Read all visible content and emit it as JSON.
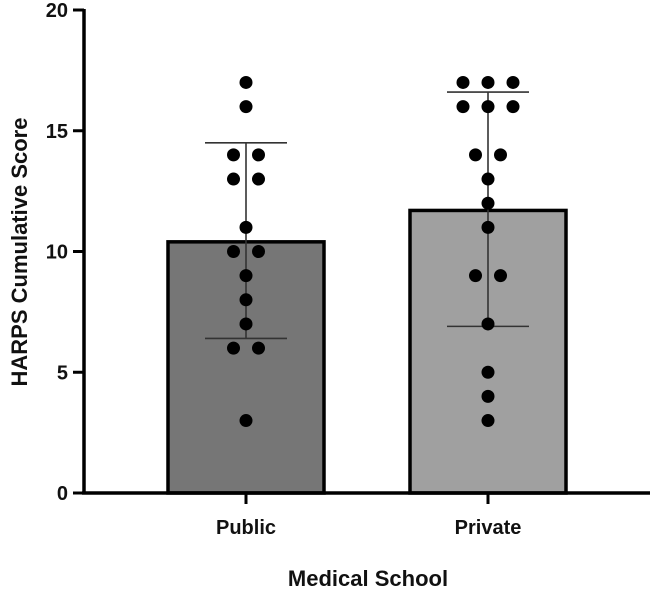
{
  "chart_data": {
    "type": "bar",
    "title": "",
    "xlabel": "Medical School",
    "ylabel": "HARPS Cumulative Score",
    "categories": [
      "Public",
      "Private"
    ],
    "values": [
      10.4,
      11.7
    ],
    "error_bars": {
      "type": "SD",
      "lower": [
        6.4,
        6.9
      ],
      "upper": [
        14.5,
        16.6
      ]
    },
    "points": [
      [
        17,
        16,
        14,
        14,
        13,
        13,
        11,
        10,
        10,
        9,
        8,
        7,
        6,
        6,
        3
      ],
      [
        17,
        17,
        17,
        16,
        16,
        16,
        14,
        14,
        13,
        12,
        11,
        9,
        9,
        7,
        5,
        4,
        3
      ]
    ],
    "bar_colors": [
      "#767676",
      "#a0a0a0"
    ],
    "point_color": "#000000",
    "ylim": [
      0,
      20
    ],
    "yticks": [
      0,
      5,
      10,
      15,
      20
    ],
    "grid": false,
    "legend": null
  }
}
